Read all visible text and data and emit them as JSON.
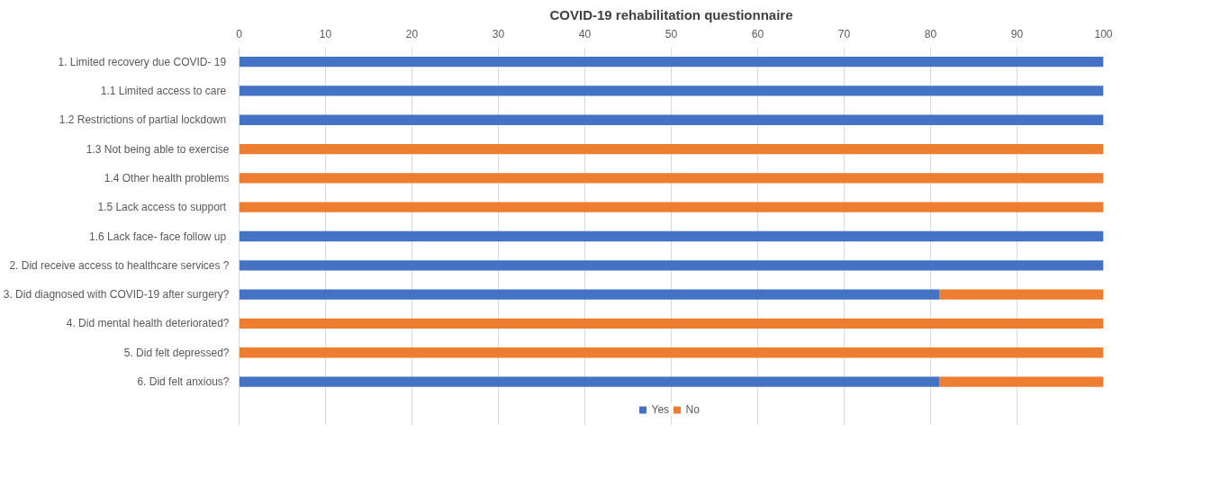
{
  "chart_data": {
    "type": "bar",
    "orientation": "horizontal",
    "stacked": true,
    "title": "COVID-19 rehabilitation questionnaire",
    "categories": [
      "1. Limited recovery due  COVID- 19",
      "1.1 Limited access to care ",
      "1.2  Restrictions of partial lockdown",
      "1.3 Not being able to exercise",
      "1.4 Other health problems",
      "1.5 Lack access to support ",
      "1.6 Lack  face- face follow up",
      "2. Did receive access to healthcare services ?",
      "3. Did diagnosed with COVID-19 after surgery?",
      "4. Did mental health deteriorated?",
      "5. Did felt depressed?",
      "6. Did felt anxious?"
    ],
    "series": [
      {
        "name": "Yes",
        "color": "#4472c4",
        "values": [
          100,
          100,
          100,
          0,
          0,
          0,
          100,
          100,
          81,
          0,
          0,
          81
        ]
      },
      {
        "name": "No",
        "color": "#ed7d31",
        "values": [
          0,
          0,
          0,
          100,
          100,
          100,
          0,
          0,
          19,
          100,
          100,
          19
        ]
      }
    ],
    "xlim": [
      0,
      100
    ],
    "xticks": [
      0,
      10,
      20,
      30,
      40,
      50,
      60,
      70,
      80,
      90,
      100
    ],
    "grid": "x",
    "legend": "bottom"
  }
}
